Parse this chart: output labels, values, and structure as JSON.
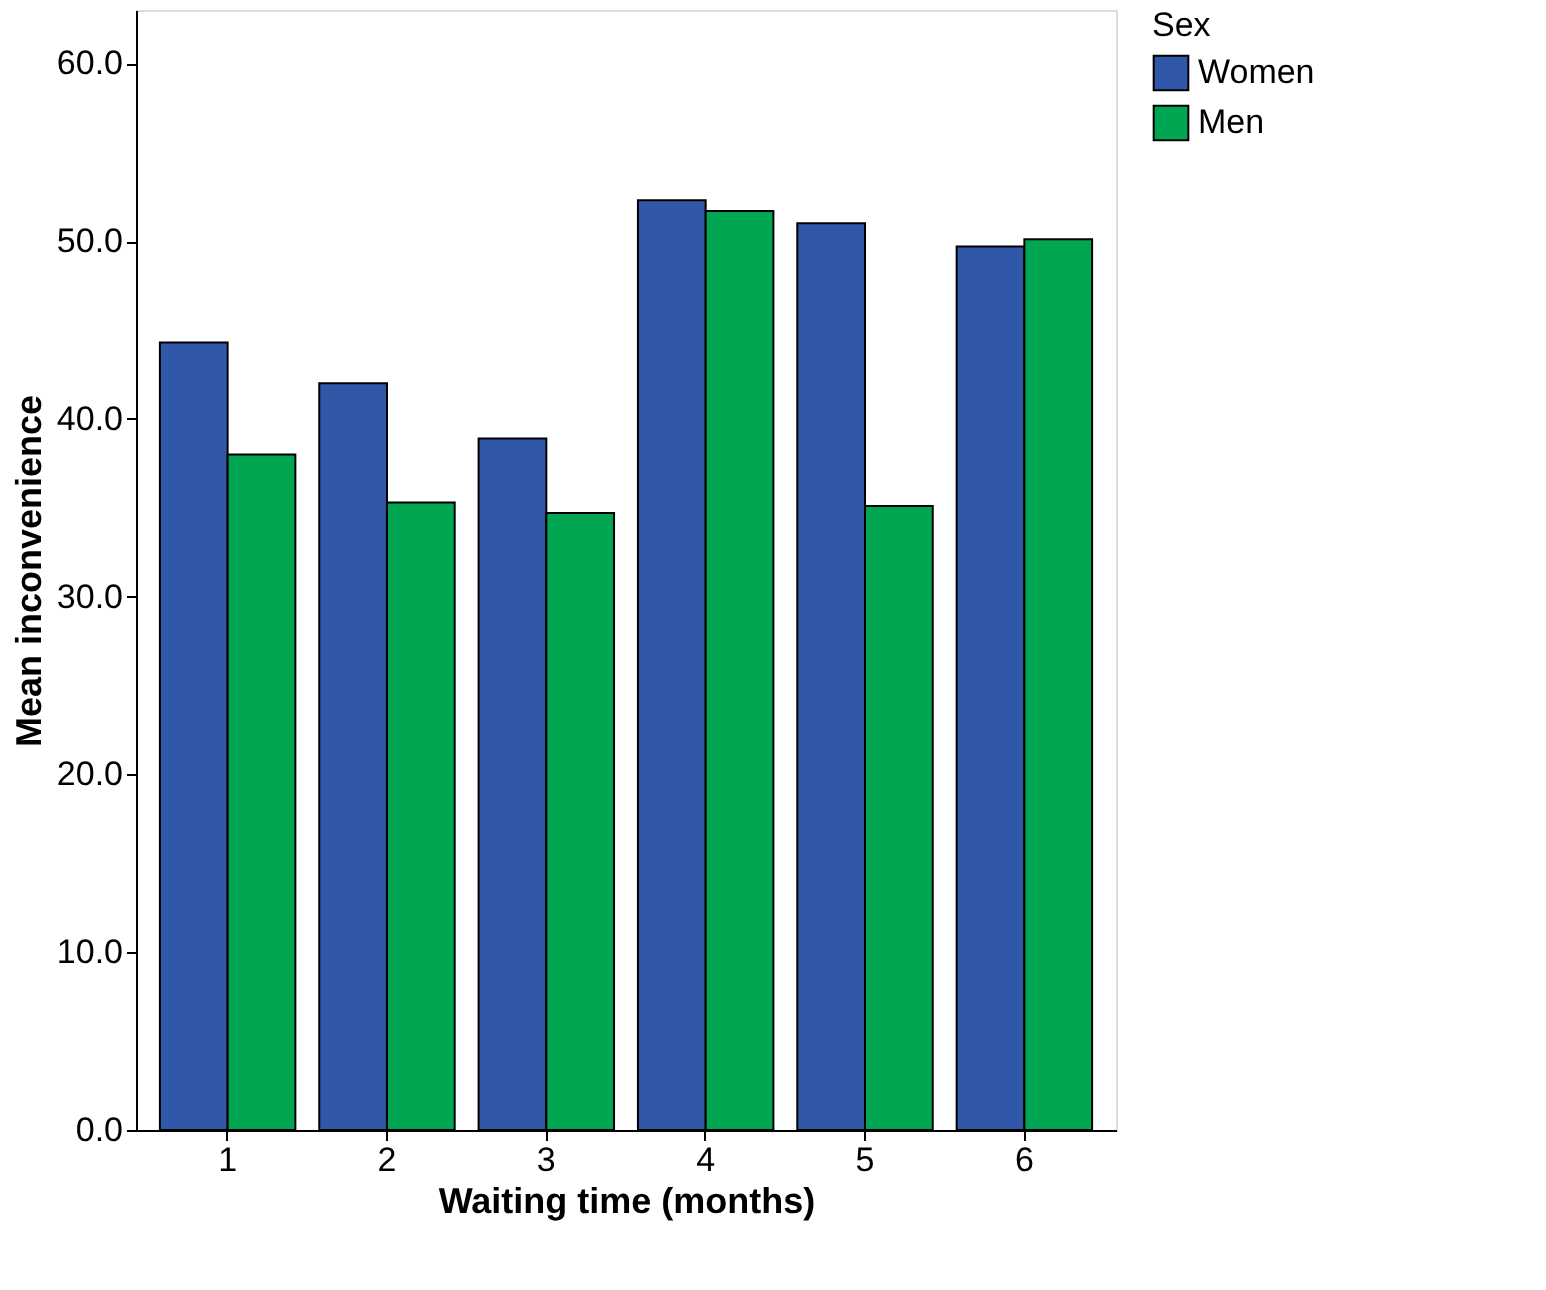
{
  "chart_data": {
    "type": "bar",
    "xlabel": "Waiting time (months)",
    "ylabel": "Mean inconvenience",
    "legend_title": "Sex",
    "legend": "top right",
    "grid": false,
    "categories": [
      "1",
      "2",
      "3",
      "4",
      "5",
      "6"
    ],
    "series": [
      {
        "name": "Women",
        "color": "#3158a8",
        "values": [
          44.3,
          42.0,
          38.9,
          52.3,
          51.0,
          49.7
        ]
      },
      {
        "name": "Men",
        "color": "#00a651",
        "values": [
          38.0,
          35.3,
          34.7,
          51.7,
          35.1,
          50.1
        ]
      }
    ],
    "ylim": [
      0,
      63
    ],
    "yticks": [
      {
        "value": 0,
        "label": "0.0"
      },
      {
        "value": 10,
        "label": "10.0"
      },
      {
        "value": 20,
        "label": "20.0"
      },
      {
        "value": 30,
        "label": "30.0"
      },
      {
        "value": 40,
        "label": "40.0"
      },
      {
        "value": 50,
        "label": "50.0"
      },
      {
        "value": 60,
        "label": "60.0"
      }
    ]
  }
}
